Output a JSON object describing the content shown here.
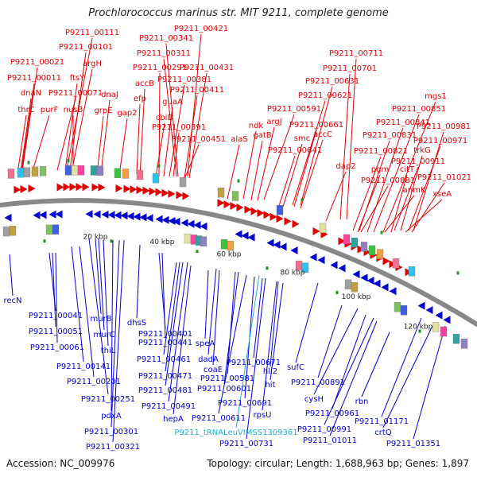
{
  "title": "Prochlorococcus marinus str. MIT 9211, complete genome",
  "footer": {
    "accession": "Accession: NC_009976",
    "summary": "Topology: circular; Length: 1,688,963 bp; Genes: 1,897"
  },
  "colors": {
    "forward": "#e00000",
    "reverse": "#0000d0",
    "trna": "#20b0e0",
    "backbone": "#888888"
  },
  "ticks": [
    "20 kbp",
    "40 kbp",
    "60 kbp",
    "80 kbp",
    "100 kbp",
    "120 kbp"
  ],
  "top_labels": [
    "P9211_00111",
    "P9211_00421",
    "P9211_00341",
    "P9211_00101",
    "P9211_00311",
    "P9211_00021",
    "argH",
    "P9211_00711",
    "P9211_00291",
    "P9211_00431",
    "P9211_00701",
    "P9211_00011",
    "ftsY",
    "P9211_00381",
    "accB",
    "P9211_00631",
    "dnaN",
    "P9211_00071",
    "P9211_00411",
    "mgs1",
    "dnaJ",
    "efp",
    "P9211_00621",
    "nusB",
    "guaA",
    "P9211_00851",
    "P9211_00591",
    "thrC",
    "purF",
    "grpE",
    "gap2",
    "cbiD",
    "P9211_00841",
    "argJ",
    "P9211_00661",
    "ndk",
    "P9211_00391",
    "smc",
    "accC",
    "P9211_00981",
    "gatB",
    "P9211_00831",
    "P9211_00451",
    "alaS",
    "P9211_00971",
    "P9211_00641",
    "trkG",
    "P9211_00821",
    "P9211_00911",
    "dap2",
    "pgm",
    "citT",
    "P9211_00881",
    "P9211_01021",
    "anmK",
    "xseA"
  ],
  "bottom_labels": [
    "recN",
    "P9211_00041",
    "murB",
    "P9211_00051",
    "murC",
    "dhsS",
    "P9211_00061",
    "thiL",
    "P9211_00401",
    "P9211_00441",
    "speA",
    "P9211_00141",
    "P9211_00461",
    "dadA",
    "P9211_00671",
    "sufC",
    "coaE",
    "hli2",
    "P9211_00201",
    "P9211_00471",
    "P9211_00581",
    "hit",
    "P9211_00891",
    "P9211_00481",
    "P9211_00601",
    "P9211_00251",
    "P9211_00491",
    "cysH",
    "P9211_00691",
    "rbn",
    "pdxA",
    "hepA",
    "P9211_00611",
    "rpsU",
    "P9211_00961",
    "P9211_01171",
    "P9211_00301",
    "P9211_tRNALeuVIMSS1309361",
    "P9211_00991",
    "crtQ",
    "P9211_01011",
    "P9211_00321",
    "P9211_00731",
    "P9211_01351"
  ]
}
